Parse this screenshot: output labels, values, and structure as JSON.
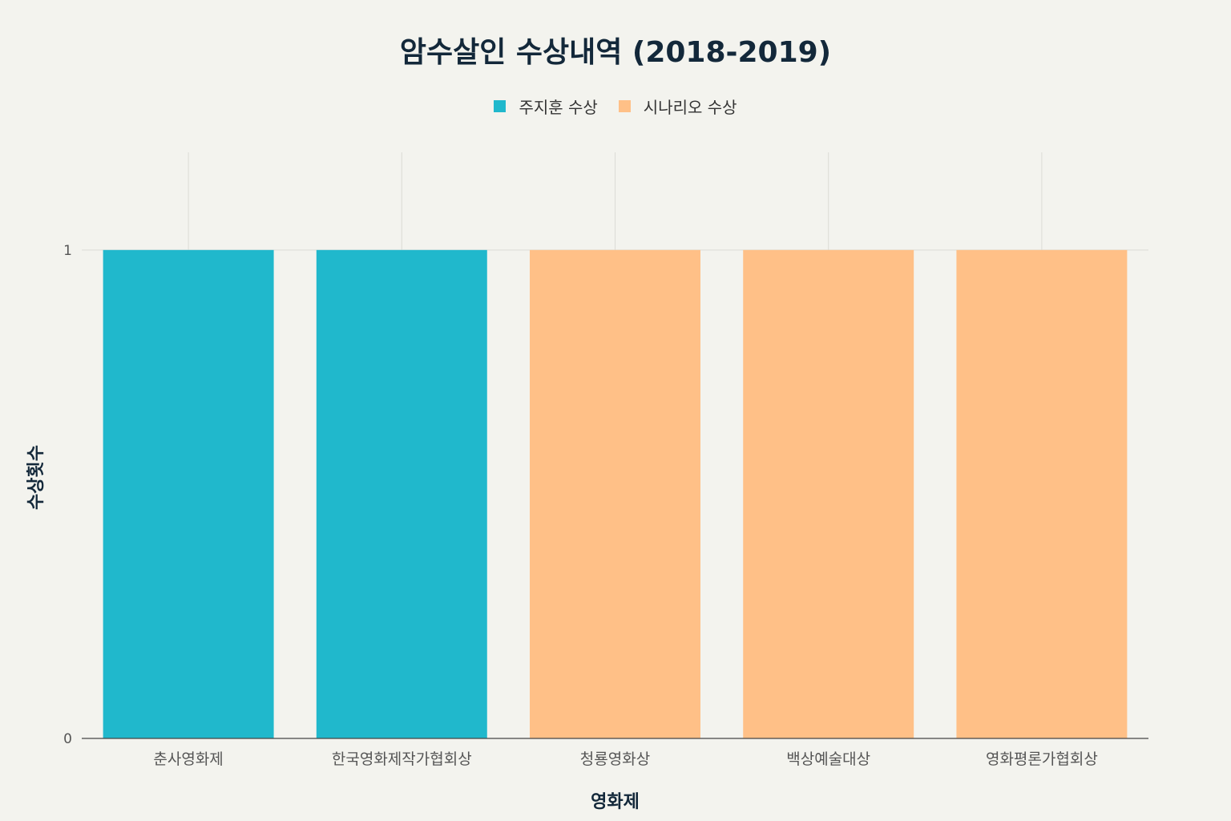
{
  "chart_data": {
    "type": "bar",
    "title": "암수살인 수상내역 (2018-2019)",
    "xlabel": "영화제",
    "ylabel": "수상횟수",
    "categories": [
      "춘사영화제",
      "한국영화제작가협회상",
      "청룡영화상",
      "백상예술대상",
      "영화평론가협회상"
    ],
    "series": [
      {
        "name": "주지훈 수상",
        "color": "#20b8cc",
        "values": [
          1,
          1,
          null,
          null,
          null
        ]
      },
      {
        "name": "시나리오 수상",
        "color": "#ffc087",
        "values": [
          null,
          null,
          1,
          1,
          1
        ]
      }
    ],
    "ylim": [
      0,
      1.2
    ],
    "yticks": [
      0,
      1
    ],
    "grid": true,
    "legend_position": "top-center"
  }
}
